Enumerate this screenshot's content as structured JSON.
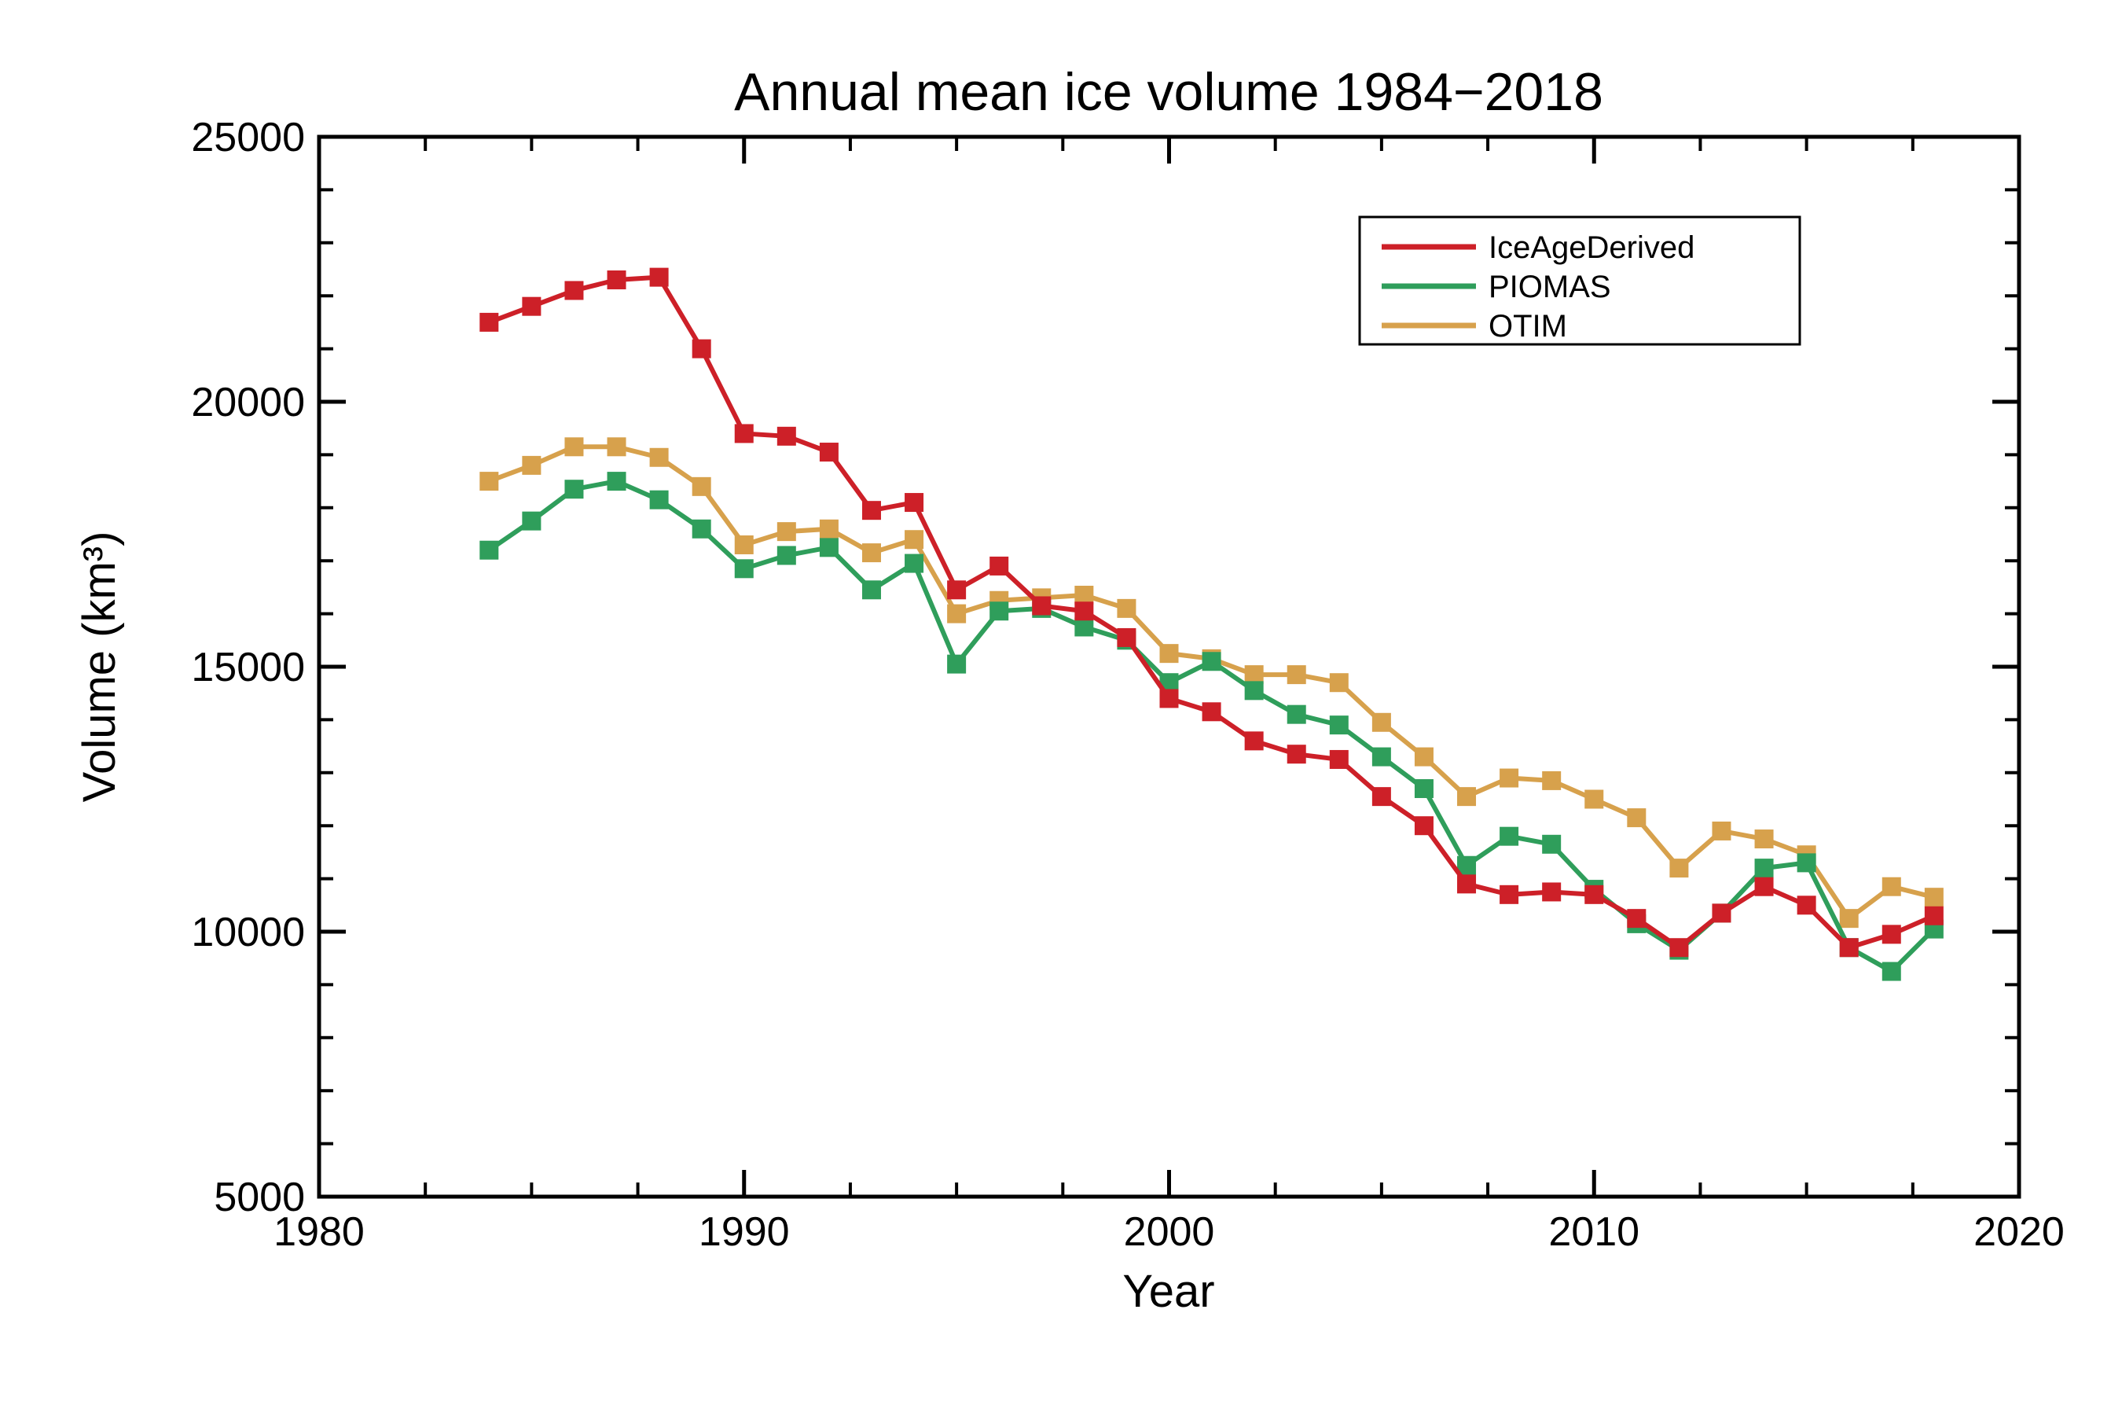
{
  "chart_data": {
    "type": "line",
    "title": "Annual mean ice volume 1984−2018",
    "xlabel": "Year",
    "ylabel": "Volume (km³)",
    "xlim": [
      1980,
      2020
    ],
    "ylim": [
      5000,
      25000
    ],
    "x_major_ticks": [
      1980,
      1990,
      2000,
      2010,
      2020
    ],
    "y_major_ticks": [
      5000,
      10000,
      15000,
      20000,
      25000
    ],
    "x_minor_step": 2.5,
    "y_minor_step": 1000,
    "grid": false,
    "marker": "square",
    "legend_position": "top-right",
    "background_color": "#ffffff",
    "axis_color": "#000000",
    "x": [
      1984,
      1985,
      1986,
      1987,
      1988,
      1989,
      1990,
      1991,
      1992,
      1993,
      1994,
      1995,
      1996,
      1997,
      1998,
      1999,
      2000,
      2001,
      2002,
      2003,
      2004,
      2005,
      2006,
      2007,
      2008,
      2009,
      2010,
      2011,
      2012,
      2013,
      2014,
      2015,
      2016,
      2017,
      2018
    ],
    "series": [
      {
        "name": "IceAgeDerived",
        "color": "#cd2028",
        "values": [
          21500,
          21800,
          22100,
          22300,
          22350,
          21000,
          19400,
          19350,
          19050,
          17950,
          18100,
          16450,
          16900,
          16150,
          16050,
          15550,
          14400,
          14150,
          13600,
          13350,
          13250,
          12550,
          12000,
          10900,
          10700,
          10750,
          10700,
          10250,
          9700,
          10350,
          10850,
          10500,
          9700,
          9950,
          10300
        ]
      },
      {
        "name": "PIOMAS",
        "color": "#2f9e5b",
        "values": [
          17200,
          17750,
          18350,
          18500,
          18150,
          17600,
          16850,
          17100,
          17250,
          16450,
          16950,
          15050,
          16050,
          16100,
          15750,
          15500,
          14700,
          15100,
          14550,
          14100,
          13900,
          13300,
          12700,
          11250,
          11800,
          11650,
          10800,
          10150,
          9650,
          10350,
          11200,
          11300,
          9700,
          9250,
          10050
        ]
      },
      {
        "name": "OTIM",
        "color": "#d7a14c",
        "values": [
          18500,
          18800,
          19150,
          19150,
          18950,
          18400,
          17300,
          17550,
          17600,
          17150,
          17400,
          16000,
          16250,
          16300,
          16350,
          16100,
          15250,
          15150,
          14850,
          14850,
          14700,
          13950,
          13300,
          12550,
          12900,
          12850,
          12500,
          12150,
          11200,
          11900,
          11750,
          11450,
          10250,
          10850,
          10650
        ]
      }
    ]
  }
}
